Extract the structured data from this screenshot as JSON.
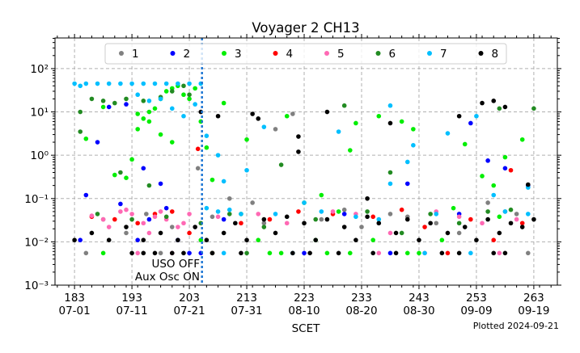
{
  "chart_data": {
    "type": "scatter",
    "title": "Voyager 2 CH13",
    "xlabel": "SCET",
    "ylabel": "",
    "yscale": "log",
    "xlim": [
      179.6,
      267.1
    ],
    "ylim": [
      0.001,
      510
    ],
    "grid": true,
    "legend": "top-center",
    "x_ticks": [
      {
        "day": 183,
        "label1": "183",
        "label2": "07-01"
      },
      {
        "day": 193,
        "label1": "193",
        "label2": "07-11"
      },
      {
        "day": 203,
        "label1": "203",
        "label2": "07-21"
      },
      {
        "day": 213,
        "label1": "213",
        "label2": "07-31"
      },
      {
        "day": 223,
        "label1": "223",
        "label2": "08-10"
      },
      {
        "day": 233,
        "label1": "233",
        "label2": "08-20"
      },
      {
        "day": 243,
        "label1": "243",
        "label2": "08-30"
      },
      {
        "day": 253,
        "label1": "253",
        "label2": "09-09"
      },
      {
        "day": 263,
        "label1": "263",
        "label2": "09-19"
      }
    ],
    "y_ticks": [
      {
        "value": 0.001,
        "label": "10⁻³"
      },
      {
        "value": 0.01,
        "label": "10⁻²"
      },
      {
        "value": 0.1,
        "label": "10⁻¹"
      },
      {
        "value": 1,
        "label": "10⁰"
      },
      {
        "value": 10,
        "label": "10¹"
      },
      {
        "value": 100,
        "label": "10²"
      }
    ],
    "event_line": {
      "day": 205.2,
      "color": "#1f77d4",
      "labels": [
        "USO OFF",
        "Aux Osc ON"
      ]
    },
    "footnote": "Plotted 2024-09-21",
    "series": [
      {
        "name": "1",
        "color": "#808080",
        "points": [
          [
            185,
            0.0055
          ],
          [
            195.5,
            0.044
          ],
          [
            198,
            0.0055
          ],
          [
            204.5,
            0.5
          ],
          [
            210,
            0.1
          ],
          [
            214,
            0.08
          ],
          [
            218,
            4
          ],
          [
            221,
            9
          ],
          [
            230,
            0.055
          ],
          [
            238,
            0.044
          ],
          [
            255,
            0.08
          ],
          [
            262,
            0.0055
          ],
          [
            200,
            0.022
          ],
          [
            226,
            0.033
          ],
          [
            246,
            0.027
          ],
          [
            258,
            0.05
          ],
          [
            188,
            0.033
          ],
          [
            192,
            0.016
          ],
          [
            207,
            0.038
          ],
          [
            216,
            0.027
          ],
          [
            233,
            0.022
          ],
          [
            241,
            0.038
          ],
          [
            250,
            0.016
          ],
          [
            260,
            0.044
          ]
        ]
      },
      {
        "name": "2",
        "color": "#0000ff",
        "points": [
          [
            185,
            0.12
          ],
          [
            187,
            2
          ],
          [
            189,
            13
          ],
          [
            192,
            15
          ],
          [
            195,
            0.5
          ],
          [
            198,
            0.22
          ],
          [
            201,
            0.011
          ],
          [
            203,
            0.0055
          ],
          [
            205,
            0.0055
          ],
          [
            184,
            0.011
          ],
          [
            194,
            0.011
          ],
          [
            241,
            0.22
          ],
          [
            252,
            5.5
          ],
          [
            255,
            0.75
          ],
          [
            258,
            0.5
          ],
          [
            262,
            0.2
          ],
          [
            223,
            0.0055
          ],
          [
            238,
            0.0055
          ],
          [
            209,
            0.033
          ],
          [
            230,
            0.044
          ],
          [
            250,
            0.044
          ],
          [
            196,
            0.033
          ],
          [
            191,
            0.075
          ],
          [
            199,
            0.06
          ]
        ]
      },
      {
        "name": "3",
        "color": "#00ee00",
        "points": [
          [
            190,
            0.35
          ],
          [
            188,
            13
          ],
          [
            194,
            9
          ],
          [
            195,
            7
          ],
          [
            196,
            10
          ],
          [
            197,
            12
          ],
          [
            198,
            20
          ],
          [
            199,
            30
          ],
          [
            200,
            35
          ],
          [
            201,
            40
          ],
          [
            202,
            25
          ],
          [
            203,
            20
          ],
          [
            204,
            35
          ],
          [
            205,
            6
          ],
          [
            206,
            1.5
          ],
          [
            207,
            0.27
          ],
          [
            209,
            16
          ],
          [
            213,
            2.3
          ],
          [
            220,
            8
          ],
          [
            223,
            0.08
          ],
          [
            226,
            0.12
          ],
          [
            231,
            1.3
          ],
          [
            232,
            5.5
          ],
          [
            236,
            8
          ],
          [
            240,
            6
          ],
          [
            242,
            4
          ],
          [
            251,
            1.8
          ],
          [
            254,
            0.33
          ],
          [
            256,
            0.2
          ],
          [
            258,
            0.9
          ],
          [
            261,
            2.3
          ],
          [
            185,
            2.4
          ],
          [
            192,
            0.3
          ],
          [
            193,
            0.8
          ],
          [
            188,
            0.0055
          ],
          [
            217,
            0.0055
          ],
          [
            219,
            0.0055
          ],
          [
            227,
            0.0055
          ],
          [
            231,
            0.0055
          ],
          [
            241,
            0.0055
          ],
          [
            243,
            0.0055
          ],
          [
            205,
            0.011
          ],
          [
            215,
            0.011
          ],
          [
            225,
            0.011
          ],
          [
            235,
            0.011
          ],
          [
            247,
            0.011
          ],
          [
            194,
            4
          ],
          [
            196,
            6
          ],
          [
            198,
            3
          ],
          [
            200,
            2
          ],
          [
            212,
            0.044
          ],
          [
            229,
            0.05
          ],
          [
            249,
            0.06
          ],
          [
            257,
            0.038
          ]
        ]
      },
      {
        "name": "4",
        "color": "#ff0000",
        "points": [
          [
            204.5,
            1.4
          ],
          [
            207,
            0.0055
          ],
          [
            248,
            0.0055
          ],
          [
            259,
            0.45
          ],
          [
            256,
            0.011
          ],
          [
            190,
            0.033
          ],
          [
            197,
            0.044
          ],
          [
            212,
            0.027
          ],
          [
            222,
            0.05
          ],
          [
            235,
            0.038
          ],
          [
            244,
            0.022
          ],
          [
            252,
            0.033
          ],
          [
            203,
            0.016
          ],
          [
            186,
            0.038
          ],
          [
            194,
            0.027
          ],
          [
            200,
            0.05
          ],
          [
            217,
            0.033
          ],
          [
            228,
            0.044
          ],
          [
            240,
            0.055
          ],
          [
            261,
            0.027
          ]
        ]
      },
      {
        "name": "5",
        "color": "#ff69b4",
        "points": [
          [
            186,
            0.04
          ],
          [
            188,
            0.033
          ],
          [
            191,
            0.05
          ],
          [
            193,
            0.044
          ],
          [
            195,
            0.027
          ],
          [
            197,
            0.038
          ],
          [
            199,
            0.033
          ],
          [
            201,
            0.022
          ],
          [
            203,
            0.044
          ],
          [
            194,
            0.0055
          ],
          [
            200,
            0.0055
          ],
          [
            236,
            0.0055
          ],
          [
            244,
            0.0055
          ],
          [
            257,
            0.0055
          ],
          [
            215,
            0.044
          ],
          [
            228,
            0.05
          ],
          [
            250,
            0.038
          ],
          [
            260,
            0.033
          ],
          [
            238,
            0.016
          ],
          [
            189,
            0.022
          ],
          [
            192,
            0.055
          ],
          [
            196,
            0.016
          ],
          [
            198,
            0.05
          ],
          [
            202,
            0.027
          ],
          [
            208,
            0.038
          ],
          [
            220,
            0.027
          ],
          [
            232,
            0.044
          ],
          [
            246,
            0.05
          ],
          [
            254,
            0.027
          ]
        ]
      },
      {
        "name": "6",
        "color": "#228b22",
        "points": [
          [
            184,
            3.5
          ],
          [
            184,
            10
          ],
          [
            186,
            20
          ],
          [
            188,
            18
          ],
          [
            190,
            16
          ],
          [
            192,
            20
          ],
          [
            195,
            18
          ],
          [
            198,
            22
          ],
          [
            200,
            30
          ],
          [
            202,
            40
          ],
          [
            203,
            25
          ],
          [
            191,
            0.4
          ],
          [
            196,
            0.2
          ],
          [
            207,
            0.0055
          ],
          [
            213,
            0.0055
          ],
          [
            219,
            0.6
          ],
          [
            230,
            14
          ],
          [
            238,
            0.4
          ],
          [
            257,
            12
          ],
          [
            263,
            12
          ],
          [
            255,
            0.05
          ],
          [
            245,
            0.044
          ],
          [
            225,
            0.033
          ],
          [
            210,
            0.044
          ],
          [
            234,
            0.05
          ],
          [
            187,
            0.044
          ],
          [
            193,
            0.033
          ],
          [
            199,
            0.038
          ],
          [
            205,
            0.027
          ],
          [
            216,
            0.022
          ],
          [
            240,
            0.016
          ],
          [
            250,
            0.027
          ],
          [
            259,
            0.055
          ]
        ]
      },
      {
        "name": "7",
        "color": "#00bfff",
        "points": [
          [
            183,
            45
          ],
          [
            184,
            40
          ],
          [
            185,
            45
          ],
          [
            187,
            45
          ],
          [
            189,
            45
          ],
          [
            191,
            45
          ],
          [
            193,
            45
          ],
          [
            195,
            45
          ],
          [
            197,
            45
          ],
          [
            199,
            45
          ],
          [
            201,
            45
          ],
          [
            203,
            45
          ],
          [
            205,
            45
          ],
          [
            194,
            25
          ],
          [
            196,
            18
          ],
          [
            198,
            20
          ],
          [
            200,
            12
          ],
          [
            202,
            8
          ],
          [
            204,
            15
          ],
          [
            206,
            2.8
          ],
          [
            208,
            1
          ],
          [
            209,
            0.25
          ],
          [
            213,
            0.45
          ],
          [
            216,
            4.5
          ],
          [
            223,
            0.08
          ],
          [
            229,
            3.5
          ],
          [
            238,
            14
          ],
          [
            238,
            0.22
          ],
          [
            241,
            0.7
          ],
          [
            242,
            1.7
          ],
          [
            248,
            3.2
          ],
          [
            253,
            8
          ],
          [
            256,
            0.12
          ],
          [
            262,
            0.18
          ],
          [
            209,
            0.0055
          ],
          [
            221,
            0.0055
          ],
          [
            244,
            0.0055
          ],
          [
            252,
            0.0055
          ],
          [
            218,
            0.044
          ],
          [
            232,
            0.038
          ],
          [
            226,
            0.05
          ],
          [
            206,
            0.06
          ],
          [
            208,
            0.05
          ],
          [
            210,
            0.055
          ],
          [
            212,
            0.044
          ],
          [
            236,
            0.033
          ],
          [
            246,
            0.044
          ],
          [
            258,
            0.05
          ],
          [
            262,
            0.044
          ]
        ]
      },
      {
        "name": "8",
        "color": "#000000",
        "points": [
          [
            205,
            10
          ],
          [
            208,
            8
          ],
          [
            214,
            9
          ],
          [
            215,
            7
          ],
          [
            222,
            2.7
          ],
          [
            222,
            1.2
          ],
          [
            227,
            10
          ],
          [
            234,
            0.1
          ],
          [
            238,
            5.5
          ],
          [
            250,
            8
          ],
          [
            254,
            16
          ],
          [
            256,
            18
          ],
          [
            258,
            13
          ],
          [
            262,
            0.21
          ],
          [
            193,
            0.0055
          ],
          [
            195,
            0.0055
          ],
          [
            197,
            0.0055
          ],
          [
            200,
            0.0055
          ],
          [
            202,
            0.0055
          ],
          [
            207,
            0.0055
          ],
          [
            212,
            0.0055
          ],
          [
            221,
            0.0055
          ],
          [
            224,
            0.0055
          ],
          [
            229,
            0.0055
          ],
          [
            235,
            0.0055
          ],
          [
            239,
            0.0055
          ],
          [
            247,
            0.0055
          ],
          [
            250,
            0.0055
          ],
          [
            256,
            0.0055
          ],
          [
            258,
            0.0055
          ],
          [
            183,
            0.011
          ],
          [
            186,
            0.016
          ],
          [
            189,
            0.011
          ],
          [
            192,
            0.022
          ],
          [
            195,
            0.011
          ],
          [
            198,
            0.016
          ],
          [
            201,
            0.011
          ],
          [
            204,
            0.022
          ],
          [
            206,
            0.011
          ],
          [
            209,
            0.016
          ],
          [
            211,
            0.027
          ],
          [
            213,
            0.011
          ],
          [
            216,
            0.033
          ],
          [
            218,
            0.016
          ],
          [
            220,
            0.038
          ],
          [
            223,
            0.027
          ],
          [
            225,
            0.011
          ],
          [
            227,
            0.033
          ],
          [
            230,
            0.022
          ],
          [
            232,
            0.011
          ],
          [
            234,
            0.038
          ],
          [
            236,
            0.027
          ],
          [
            239,
            0.016
          ],
          [
            241,
            0.033
          ],
          [
            243,
            0.011
          ],
          [
            245,
            0.027
          ],
          [
            248,
            0.016
          ],
          [
            251,
            0.022
          ],
          [
            253,
            0.011
          ],
          [
            255,
            0.033
          ],
          [
            257,
            0.016
          ],
          [
            259,
            0.027
          ],
          [
            261,
            0.022
          ],
          [
            263,
            0.033
          ]
        ]
      }
    ]
  }
}
